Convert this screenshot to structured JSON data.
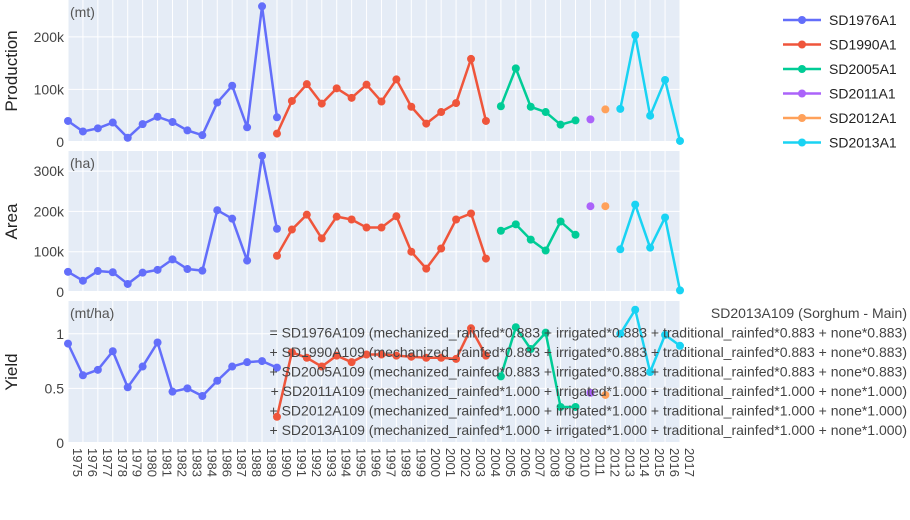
{
  "chart_data": {
    "type": "line",
    "x_categories": [
      "1975",
      "1976",
      "1977",
      "1978",
      "1979",
      "1980",
      "1981",
      "1982",
      "1983",
      "1984",
      "1986",
      "1987",
      "1988",
      "1989",
      "1990",
      "1991",
      "1992",
      "1993",
      "1994",
      "1995",
      "1996",
      "1997",
      "1998",
      "1999",
      "2000",
      "2001",
      "2002",
      "2003",
      "2004",
      "2005",
      "2006",
      "2007",
      "2008",
      "2009",
      "2010",
      "2011",
      "2012",
      "2013",
      "2014",
      "2015",
      "2016",
      "2017"
    ],
    "panels": [
      {
        "ylabel": "Production",
        "unit": "(mt)",
        "ylim": [
          0,
          270000
        ],
        "yticks": [
          {
            "v": 0,
            "label": "0"
          },
          {
            "v": 100000,
            "label": "100k"
          },
          {
            "v": 200000,
            "label": "200k"
          }
        ],
        "series": [
          {
            "name": "SD1976A1",
            "points": [
              [
                "1975",
                40000
              ],
              [
                "1976",
                20000
              ],
              [
                "1977",
                26000
              ],
              [
                "1978",
                37000
              ],
              [
                "1979",
                8000
              ],
              [
                "1980",
                34000
              ],
              [
                "1981",
                48000
              ],
              [
                "1982",
                38000
              ],
              [
                "1983",
                22000
              ],
              [
                "1984",
                13000
              ],
              [
                "1986",
                75000
              ],
              [
                "1987",
                107000
              ],
              [
                "1988",
                28000
              ],
              [
                "1989",
                258000
              ],
              [
                "1990",
                47000
              ]
            ]
          },
          {
            "name": "SD1990A1",
            "points": [
              [
                "1990",
                16000
              ],
              [
                "1991",
                78000
              ],
              [
                "1992",
                110000
              ],
              [
                "1993",
                73000
              ],
              [
                "1994",
                102000
              ],
              [
                "1995",
                84000
              ],
              [
                "1996",
                109000
              ],
              [
                "1997",
                77000
              ],
              [
                "1998",
                119000
              ],
              [
                "1999",
                67000
              ],
              [
                "2000",
                35000
              ],
              [
                "2001",
                57000
              ],
              [
                "2002",
                74000
              ],
              [
                "2003",
                158000
              ],
              [
                "2004",
                40000
              ]
            ]
          },
          {
            "name": "SD2005A1",
            "points": [
              [
                "2005",
                68000
              ],
              [
                "2006",
                140000
              ],
              [
                "2007",
                67000
              ],
              [
                "2008",
                57000
              ],
              [
                "2009",
                33000
              ],
              [
                "2010",
                41000
              ]
            ]
          },
          {
            "name": "SD2011A1",
            "points": [
              [
                "2011",
                43000
              ]
            ]
          },
          {
            "name": "SD2012A1",
            "points": [
              [
                "2012",
                62000
              ]
            ]
          },
          {
            "name": "SD2013A1",
            "points": [
              [
                "2013",
                63000
              ],
              [
                "2014",
                203000
              ],
              [
                "2015",
                50000
              ],
              [
                "2016",
                118000
              ],
              [
                "2017",
                2000
              ]
            ]
          }
        ]
      },
      {
        "ylabel": "Area",
        "unit": "(ha)",
        "ylim": [
          0,
          350000
        ],
        "yticks": [
          {
            "v": 0,
            "label": "0"
          },
          {
            "v": 100000,
            "label": "100k"
          },
          {
            "v": 200000,
            "label": "200k"
          },
          {
            "v": 300000,
            "label": "300k"
          }
        ],
        "series": [
          {
            "name": "SD1976A1",
            "points": [
              [
                "1975",
                50000
              ],
              [
                "1976",
                28000
              ],
              [
                "1977",
                52000
              ],
              [
                "1978",
                49000
              ],
              [
                "1979",
                20000
              ],
              [
                "1980",
                48000
              ],
              [
                "1981",
                55000
              ],
              [
                "1982",
                81000
              ],
              [
                "1983",
                57000
              ],
              [
                "1984",
                53000
              ],
              [
                "1986",
                203000
              ],
              [
                "1987",
                182000
              ],
              [
                "1988",
                78000
              ],
              [
                "1989",
                338000
              ],
              [
                "1990",
                157000
              ]
            ]
          },
          {
            "name": "SD1990A1",
            "points": [
              [
                "1990",
                90000
              ],
              [
                "1991",
                155000
              ],
              [
                "1992",
                192000
              ],
              [
                "1993",
                133000
              ],
              [
                "1994",
                187000
              ],
              [
                "1995",
                180000
              ],
              [
                "1996",
                160000
              ],
              [
                "1997",
                160000
              ],
              [
                "1998",
                188000
              ],
              [
                "1999",
                100000
              ],
              [
                "2000",
                58000
              ],
              [
                "2001",
                108000
              ],
              [
                "2002",
                180000
              ],
              [
                "2003",
                195000
              ],
              [
                "2004",
                83000
              ]
            ]
          },
          {
            "name": "SD2005A1",
            "points": [
              [
                "2005",
                152000
              ],
              [
                "2006",
                168000
              ],
              [
                "2007",
                130000
              ],
              [
                "2008",
                103000
              ],
              [
                "2009",
                175000
              ],
              [
                "2010",
                142000
              ]
            ]
          },
          {
            "name": "SD2011A1",
            "points": [
              [
                "2011",
                213000
              ]
            ]
          },
          {
            "name": "SD2012A1",
            "points": [
              [
                "2012",
                213000
              ]
            ]
          },
          {
            "name": "SD2013A1",
            "points": [
              [
                "2013",
                106000
              ],
              [
                "2014",
                217000
              ],
              [
                "2015",
                110000
              ],
              [
                "2016",
                185000
              ],
              [
                "2017",
                4000
              ]
            ]
          }
        ]
      },
      {
        "ylabel": "Yield",
        "unit": "(mt/ha)",
        "ylim": [
          0,
          1.3
        ],
        "yticks": [
          {
            "v": 0,
            "label": "0"
          },
          {
            "v": 0.5,
            "label": "0.5"
          },
          {
            "v": 1,
            "label": "1"
          }
        ],
        "series": [
          {
            "name": "SD1976A1",
            "points": [
              [
                "1975",
                0.91
              ],
              [
                "1976",
                0.62
              ],
              [
                "1977",
                0.67
              ],
              [
                "1978",
                0.84
              ],
              [
                "1979",
                0.51
              ],
              [
                "1980",
                0.7
              ],
              [
                "1981",
                0.92
              ],
              [
                "1982",
                0.47
              ],
              [
                "1983",
                0.5
              ],
              [
                "1984",
                0.43
              ],
              [
                "1986",
                0.57
              ],
              [
                "1987",
                0.7
              ],
              [
                "1988",
                0.74
              ],
              [
                "1989",
                0.75
              ],
              [
                "1990",
                0.69
              ]
            ]
          },
          {
            "name": "SD1990A1",
            "points": [
              [
                "1990",
                0.24
              ],
              [
                "1991",
                0.83
              ],
              [
                "1992",
                0.78
              ],
              [
                "1993",
                0.7
              ],
              [
                "1994",
                0.8
              ],
              [
                "1995",
                0.74
              ],
              [
                "1996",
                0.81
              ],
              [
                "1997",
                0.81
              ],
              [
                "1998",
                0.8
              ],
              [
                "1999",
                0.79
              ],
              [
                "2000",
                0.78
              ],
              [
                "2001",
                0.78
              ],
              [
                "2002",
                0.77
              ],
              [
                "2003",
                1.05
              ],
              [
                "2004",
                0.8
              ]
            ]
          },
          {
            "name": "SD2005A1",
            "points": [
              [
                "2005",
                0.61
              ],
              [
                "2006",
                1.06
              ],
              [
                "2007",
                0.86
              ],
              [
                "2008",
                1.01
              ],
              [
                "2009",
                0.33
              ],
              [
                "2010",
                0.33
              ]
            ]
          },
          {
            "name": "SD2011A1",
            "points": [
              [
                "2011",
                0.46
              ]
            ]
          },
          {
            "name": "SD2012A1",
            "points": [
              [
                "2012",
                0.44
              ]
            ]
          },
          {
            "name": "SD2013A1",
            "points": [
              [
                "2013",
                1.0
              ],
              [
                "2014",
                1.22
              ],
              [
                "2015",
                0.65
              ],
              [
                "2016",
                0.99
              ],
              [
                "2017",
                0.89
              ]
            ]
          }
        ]
      }
    ],
    "legend": {
      "position": "top-right"
    },
    "grid": true
  },
  "colors": {
    "SD1976A1": "#636efa",
    "SD1990A1": "#ef553b",
    "SD2005A1": "#00cc96",
    "SD2011A1": "#ab63fa",
    "SD2012A1": "#ffa15a",
    "SD2013A1": "#19d3f3",
    "plot_bg": "#e5ecf6",
    "grid": "#ffffff"
  },
  "annotation": {
    "lines": [
      "SD2013A109 (Sorghum - Main)",
      "= SD1976A109 (mechanized_rainfed*0.883 + irrigated*0.883 + traditional_rainfed*0.883 + none*0.883)",
      "+ SD1990A109 (mechanized_rainfed*0.883 + irrigated*0.883 + traditional_rainfed*0.883 + none*0.883)",
      "+ SD2005A109 (mechanized_rainfed*0.883 + irrigated*0.883 + traditional_rainfed*0.883 + none*0.883)",
      "+ SD2011A109 (mechanized_rainfed*1.000 + irrigated*1.000 + traditional_rainfed*1.000 + none*1.000)",
      "+ SD2012A109 (mechanized_rainfed*1.000 + irrigated*1.000 + traditional_rainfed*1.000 + none*1.000)",
      "+ SD2013A109 (mechanized_rainfed*1.000 + irrigated*1.000 + traditional_rainfed*1.000 + none*1.000)"
    ]
  }
}
